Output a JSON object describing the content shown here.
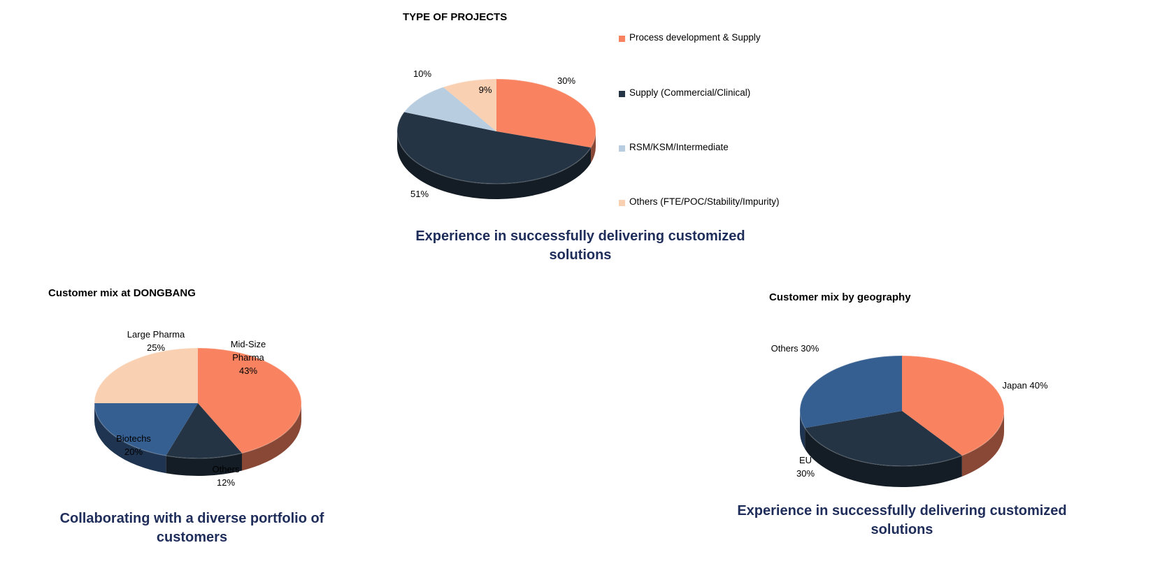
{
  "chart_data": [
    {
      "type": "pie",
      "id": "projects",
      "title": "TYPE OF PROJECTS",
      "slices": [
        {
          "label": "Process development & Supply",
          "value": 30,
          "pct_label": "30%",
          "color": "#f98360"
        },
        {
          "label": "Supply (Commercial/Clinical)",
          "value": 51,
          "pct_label": "51%",
          "color": "#243444"
        },
        {
          "label": "RSM/KSM/Intermediate",
          "value": 10,
          "pct_label": "10%",
          "color": "#b9cde0"
        },
        {
          "label": "Others (FTE/POC/Stability/Impurity)",
          "value": 9,
          "pct_label": "9%",
          "color": "#f9d0b2"
        }
      ],
      "legend": "right",
      "caption": "Experience in successfully delivering customized solutions"
    },
    {
      "type": "pie",
      "id": "dongbang",
      "title": "Customer mix at DONGBANG",
      "slices": [
        {
          "label": "Mid-Size Pharma",
          "value": 43,
          "pct_label": "43%",
          "color": "#f98360"
        },
        {
          "label": "Others",
          "value": 12,
          "pct_label": "12%",
          "color": "#243444"
        },
        {
          "label": "Biotechs",
          "value": 20,
          "pct_label": "20%",
          "color": "#365f91"
        },
        {
          "label": "Large Pharma",
          "value": 25,
          "pct_label": "25%",
          "color": "#f9d0b2"
        }
      ],
      "caption": "Collaborating with  a diverse portfolio of customers"
    },
    {
      "type": "pie",
      "id": "geography",
      "title": "Customer mix by geography",
      "slices": [
        {
          "label": "Japan",
          "value": 40,
          "pct_label": "40%",
          "color": "#f98360"
        },
        {
          "label": "EU",
          "value": 30,
          "pct_label": "30%",
          "color": "#243444"
        },
        {
          "label": "Others",
          "value": 30,
          "pct_label": "30%",
          "color": "#365f91"
        }
      ],
      "caption": "Experience in successfully delivering customized solutions"
    }
  ]
}
